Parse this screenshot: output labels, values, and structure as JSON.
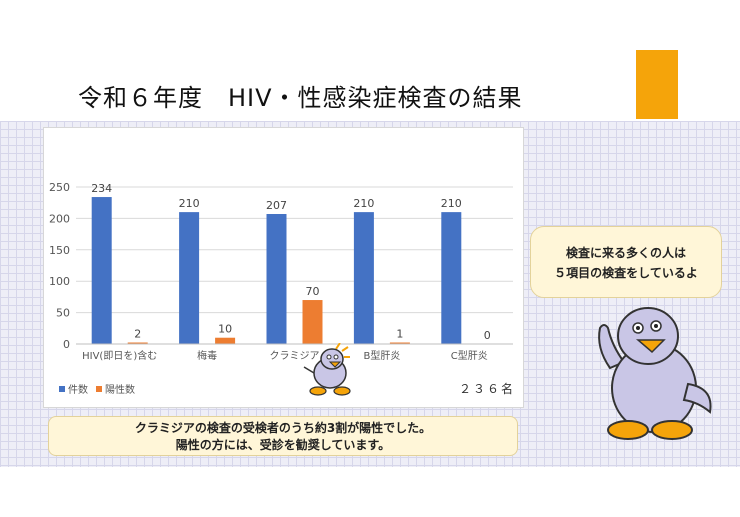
{
  "slide": {
    "title": "令和６年度　HIV・性感染症検査の結果"
  },
  "chart_data": {
    "type": "bar",
    "categories": [
      "HIV(即日を)含む",
      "梅毒",
      "クラミジア",
      "B型肝炎",
      "C型肝炎"
    ],
    "series": [
      {
        "name": "件数",
        "values": [
          234,
          210,
          207,
          210,
          210
        ],
        "color": "#4472c4"
      },
      {
        "name": "陽性数",
        "values": [
          2,
          10,
          70,
          1,
          0
        ],
        "color": "#ed7d31"
      }
    ],
    "ylim": [
      0,
      250
    ],
    "yticks": [
      "0",
      "50",
      "100",
      "150",
      "200",
      "250"
    ],
    "grid": true,
    "legend": "bottom-left",
    "total_label": "２３６名"
  },
  "note": {
    "line1": "クラミジアの検査の受検者のうち約3割が陽性でした。",
    "line2": "陽性の方には、受診を勧奨しています。"
  },
  "bubble": {
    "line1": "検査に来る多くの人は",
    "line2": "５項目の検査をしているよ"
  },
  "colors": {
    "accent": "#f5a40a",
    "mascot_body": "#c9c6e6",
    "beak": "#f5a40a"
  }
}
